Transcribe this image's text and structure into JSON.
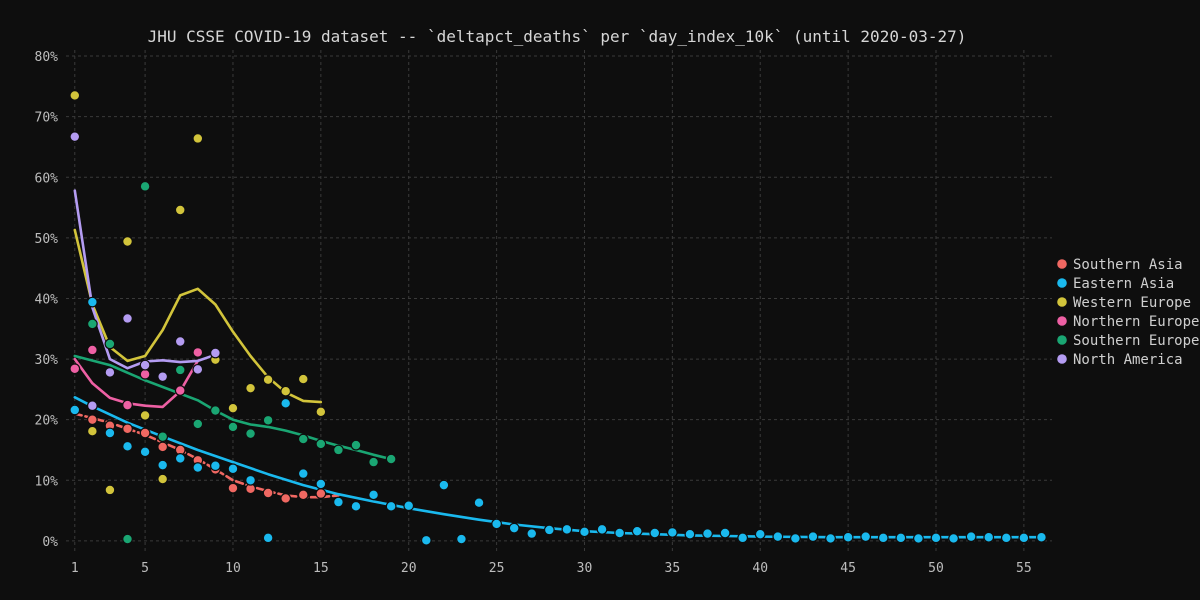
{
  "chart_data": {
    "type": "scatter",
    "title": "JHU CSSE COVID-19 dataset -- `deltapct_deaths` per `day_index_10k` (until 2020-03-27)",
    "xlabel": "",
    "ylabel": "",
    "xlim": [
      0.5,
      56.6
    ],
    "ylim": [
      -0.02,
      0.81
    ],
    "x_ticks": [
      1,
      5,
      10,
      15,
      20,
      25,
      30,
      35,
      40,
      45,
      50,
      55
    ],
    "y_ticks": [
      0,
      0.1,
      0.2,
      0.3,
      0.4,
      0.5,
      0.6,
      0.7,
      0.8
    ],
    "y_tick_labels": [
      "0%",
      "10%",
      "20%",
      "30%",
      "40%",
      "50%",
      "60%",
      "70%",
      "80%"
    ],
    "grid": true,
    "legend_position": "right",
    "series": [
      {
        "name": "Southern Asia",
        "color": "#f06862",
        "points": [
          [
            1,
            0.283
          ],
          [
            2,
            0.2
          ],
          [
            3,
            0.19
          ],
          [
            4,
            0.185
          ],
          [
            5,
            0.178
          ],
          [
            6,
            0.155
          ],
          [
            7,
            0.15
          ],
          [
            8,
            0.133
          ],
          [
            9,
            0.118
          ],
          [
            10,
            0.087
          ],
          [
            11,
            0.086
          ],
          [
            12,
            0.079
          ],
          [
            13,
            0.07
          ],
          [
            14,
            0.076
          ],
          [
            15,
            0.078
          ]
        ],
        "trend": [
          [
            1,
            0.21
          ],
          [
            3,
            0.195
          ],
          [
            5,
            0.175
          ],
          [
            7,
            0.15
          ],
          [
            8,
            0.135
          ],
          [
            9,
            0.118
          ],
          [
            10,
            0.1
          ],
          [
            11,
            0.09
          ],
          [
            12,
            0.082
          ],
          [
            13,
            0.075
          ],
          [
            14,
            0.072
          ],
          [
            15,
            0.072
          ],
          [
            16,
            0.075
          ]
        ],
        "trend_dashed": true
      },
      {
        "name": "Eastern Asia",
        "color": "#1ab9ee",
        "points": [
          [
            1,
            0.216
          ],
          [
            2,
            0.394
          ],
          [
            3,
            0.178
          ],
          [
            4,
            0.156
          ],
          [
            5,
            0.147
          ],
          [
            6,
            0.125
          ],
          [
            7,
            0.136
          ],
          [
            8,
            0.121
          ],
          [
            9,
            0.124
          ],
          [
            10,
            0.119
          ],
          [
            11,
            0.1
          ],
          [
            12,
            0.005
          ],
          [
            13,
            0.227
          ],
          [
            14,
            0.111
          ],
          [
            15,
            0.094
          ],
          [
            16,
            0.064
          ],
          [
            17,
            0.057
          ],
          [
            18,
            0.076
          ],
          [
            19,
            0.057
          ],
          [
            20,
            0.058
          ],
          [
            21,
            0.001
          ],
          [
            22,
            0.092
          ],
          [
            23,
            0.003
          ],
          [
            24,
            0.063
          ],
          [
            25,
            0.028
          ],
          [
            26,
            0.021
          ],
          [
            27,
            0.012
          ],
          [
            28,
            0.018
          ],
          [
            29,
            0.019
          ],
          [
            30,
            0.015
          ],
          [
            31,
            0.019
          ],
          [
            32,
            0.013
          ],
          [
            33,
            0.016
          ],
          [
            34,
            0.013
          ],
          [
            35,
            0.014
          ],
          [
            36,
            0.011
          ],
          [
            37,
            0.012
          ],
          [
            38,
            0.013
          ],
          [
            39,
            0.005
          ],
          [
            40,
            0.011
          ],
          [
            41,
            0.007
          ],
          [
            42,
            0.004
          ],
          [
            43,
            0.007
          ],
          [
            44,
            0.004
          ],
          [
            45,
            0.006
          ],
          [
            46,
            0.007
          ],
          [
            47,
            0.005
          ],
          [
            48,
            0.005
          ],
          [
            49,
            0.004
          ],
          [
            50,
            0.005
          ],
          [
            51,
            0.004
          ],
          [
            52,
            0.007
          ],
          [
            53,
            0.006
          ],
          [
            54,
            0.005
          ],
          [
            55,
            0.005
          ],
          [
            56,
            0.006
          ]
        ],
        "trend": [
          [
            1,
            0.237
          ],
          [
            2,
            0.222
          ],
          [
            4,
            0.195
          ],
          [
            6,
            0.172
          ],
          [
            8,
            0.15
          ],
          [
            10,
            0.13
          ],
          [
            12,
            0.11
          ],
          [
            14,
            0.092
          ],
          [
            16,
            0.077
          ],
          [
            18,
            0.065
          ],
          [
            20,
            0.054
          ],
          [
            22,
            0.044
          ],
          [
            24,
            0.035
          ],
          [
            26,
            0.027
          ],
          [
            28,
            0.021
          ],
          [
            30,
            0.016
          ],
          [
            32,
            0.013
          ],
          [
            34,
            0.011
          ],
          [
            36,
            0.009
          ],
          [
            38,
            0.008
          ],
          [
            40,
            0.007
          ],
          [
            44,
            0.006
          ],
          [
            48,
            0.006
          ],
          [
            52,
            0.006
          ],
          [
            56,
            0.006
          ]
        ],
        "trend_dashed": false
      },
      {
        "name": "Western Europe",
        "color": "#d2c43b",
        "points": [
          [
            1,
            0.735
          ],
          [
            2,
            0.181
          ],
          [
            3,
            0.084
          ],
          [
            4,
            0.494
          ],
          [
            5,
            0.207
          ],
          [
            6,
            0.102
          ],
          [
            7,
            0.546
          ],
          [
            8,
            0.664
          ],
          [
            9,
            0.299
          ],
          [
            10,
            0.219
          ],
          [
            11,
            0.252
          ],
          [
            12,
            0.266
          ],
          [
            13,
            0.247
          ],
          [
            14,
            0.267
          ],
          [
            15,
            0.213
          ]
        ],
        "trend": [
          [
            1,
            0.513
          ],
          [
            2,
            0.39
          ],
          [
            3,
            0.32
          ],
          [
            4,
            0.297
          ],
          [
            5,
            0.305
          ],
          [
            6,
            0.348
          ],
          [
            7,
            0.405
          ],
          [
            8,
            0.416
          ],
          [
            9,
            0.39
          ],
          [
            10,
            0.345
          ],
          [
            11,
            0.305
          ],
          [
            12,
            0.27
          ],
          [
            13,
            0.245
          ],
          [
            14,
            0.231
          ],
          [
            15,
            0.229
          ]
        ],
        "trend_dashed": false
      },
      {
        "name": "Northern Europe",
        "color": "#ee60a4",
        "points": [
          [
            1,
            0.284
          ],
          [
            2,
            0.315
          ],
          [
            4,
            0.224
          ],
          [
            5,
            0.275
          ],
          [
            7,
            0.248
          ],
          [
            8,
            0.311
          ]
        ],
        "trend": [
          [
            1,
            0.3
          ],
          [
            2,
            0.26
          ],
          [
            3,
            0.236
          ],
          [
            4,
            0.227
          ],
          [
            5,
            0.223
          ],
          [
            6,
            0.221
          ],
          [
            7,
            0.247
          ],
          [
            8,
            0.297
          ]
        ],
        "trend_dashed": false
      },
      {
        "name": "Southern Europe",
        "color": "#1aa673",
        "points": [
          [
            2,
            0.358
          ],
          [
            3,
            0.325
          ],
          [
            4,
            0.003
          ],
          [
            5,
            0.585
          ],
          [
            6,
            0.172
          ],
          [
            7,
            0.282
          ],
          [
            8,
            0.193
          ],
          [
            9,
            0.215
          ],
          [
            10,
            0.188
          ],
          [
            11,
            0.177
          ],
          [
            12,
            0.199
          ],
          [
            14,
            0.168
          ],
          [
            15,
            0.16
          ],
          [
            16,
            0.15
          ],
          [
            17,
            0.158
          ],
          [
            18,
            0.13
          ],
          [
            19,
            0.135
          ]
        ],
        "trend": [
          [
            1,
            0.305
          ],
          [
            3,
            0.29
          ],
          [
            5,
            0.265
          ],
          [
            7,
            0.243
          ],
          [
            8,
            0.232
          ],
          [
            9,
            0.215
          ],
          [
            10,
            0.2
          ],
          [
            11,
            0.192
          ],
          [
            12,
            0.188
          ],
          [
            13,
            0.182
          ],
          [
            14,
            0.174
          ],
          [
            15,
            0.165
          ],
          [
            16,
            0.157
          ],
          [
            17,
            0.15
          ],
          [
            18,
            0.142
          ],
          [
            19,
            0.135
          ]
        ],
        "trend_dashed": false
      },
      {
        "name": "North America",
        "color": "#b49cf2",
        "points": [
          [
            1,
            0.667
          ],
          [
            2,
            0.223
          ],
          [
            3,
            0.278
          ],
          [
            4,
            0.367
          ],
          [
            5,
            0.29
          ],
          [
            6,
            0.271
          ],
          [
            7,
            0.329
          ],
          [
            8,
            0.283
          ],
          [
            9,
            0.31
          ]
        ],
        "trend": [
          [
            1,
            0.578
          ],
          [
            2,
            0.385
          ],
          [
            3,
            0.3
          ],
          [
            4,
            0.285
          ],
          [
            5,
            0.296
          ],
          [
            6,
            0.298
          ],
          [
            7,
            0.295
          ],
          [
            8,
            0.297
          ],
          [
            9,
            0.307
          ]
        ],
        "trend_dashed": false
      }
    ]
  }
}
